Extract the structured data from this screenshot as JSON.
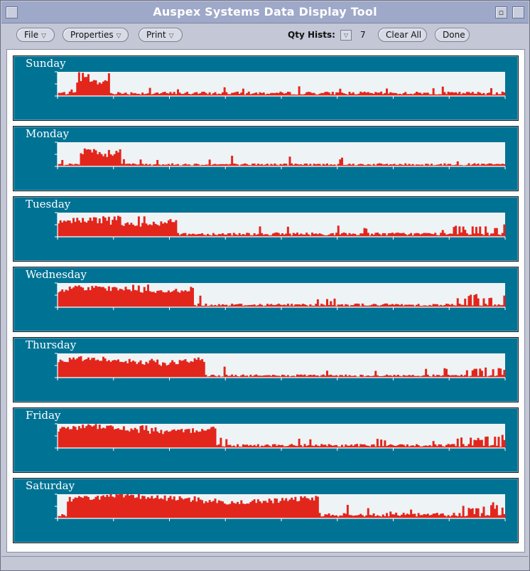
{
  "window": {
    "title": "Auspex Systems Data Display Tool"
  },
  "toolbar": {
    "file_label": "File",
    "properties_label": "Properties",
    "print_label": "Print",
    "qty_label": "Qty Hists:",
    "qty_value": "7",
    "clear_all_label": "Clear All",
    "done_label": "Done"
  },
  "colors": {
    "panel_bg": "#007395",
    "plot_bg": "#eef3f6",
    "bar": "#e2261c",
    "axis": "#ffffff"
  },
  "chart_data": [
    {
      "type": "bar",
      "title": "Sunday",
      "bins": 240,
      "busy_start": 0.04,
      "busy_end": 0.115,
      "busy_level": 0.62,
      "peak": 1.0,
      "base_level": 0.14,
      "spike_zone": 0.0,
      "spike_level": 0.0
    },
    {
      "type": "bar",
      "title": "Monday",
      "bins": 240,
      "busy_start": 0.05,
      "busy_end": 0.14,
      "busy_level": 0.55,
      "peak": 0.75,
      "base_level": 0.1,
      "spike_zone": 0.0,
      "spike_level": 0.0
    },
    {
      "type": "bar",
      "title": "Tuesday",
      "bins": 240,
      "busy_start": 0.0,
      "busy_end": 0.265,
      "busy_level": 0.58,
      "peak": 0.92,
      "base_level": 0.14,
      "spike_zone": 0.88,
      "spike_level": 0.55
    },
    {
      "type": "bar",
      "title": "Wednesday",
      "bins": 240,
      "busy_start": 0.0,
      "busy_end": 0.3,
      "busy_level": 0.7,
      "peak": 0.95,
      "base_level": 0.12,
      "spike_zone": 0.89,
      "spike_level": 0.62
    },
    {
      "type": "bar",
      "title": "Thursday",
      "bins": 240,
      "busy_start": 0.0,
      "busy_end": 0.325,
      "busy_level": 0.68,
      "peak": 0.8,
      "base_level": 0.1,
      "spike_zone": 0.91,
      "spike_level": 0.5
    },
    {
      "type": "bar",
      "title": "Friday",
      "bins": 240,
      "busy_start": 0.0,
      "busy_end": 0.35,
      "busy_level": 0.78,
      "peak": 0.95,
      "base_level": 0.13,
      "spike_zone": 0.9,
      "spike_level": 0.55
    },
    {
      "type": "bar",
      "title": "Saturday",
      "bins": 240,
      "busy_start": 0.02,
      "busy_end": 0.58,
      "busy_level": 0.8,
      "peak": 0.95,
      "base_level": 0.18,
      "spike_zone": 0.91,
      "spike_level": 0.7
    }
  ]
}
